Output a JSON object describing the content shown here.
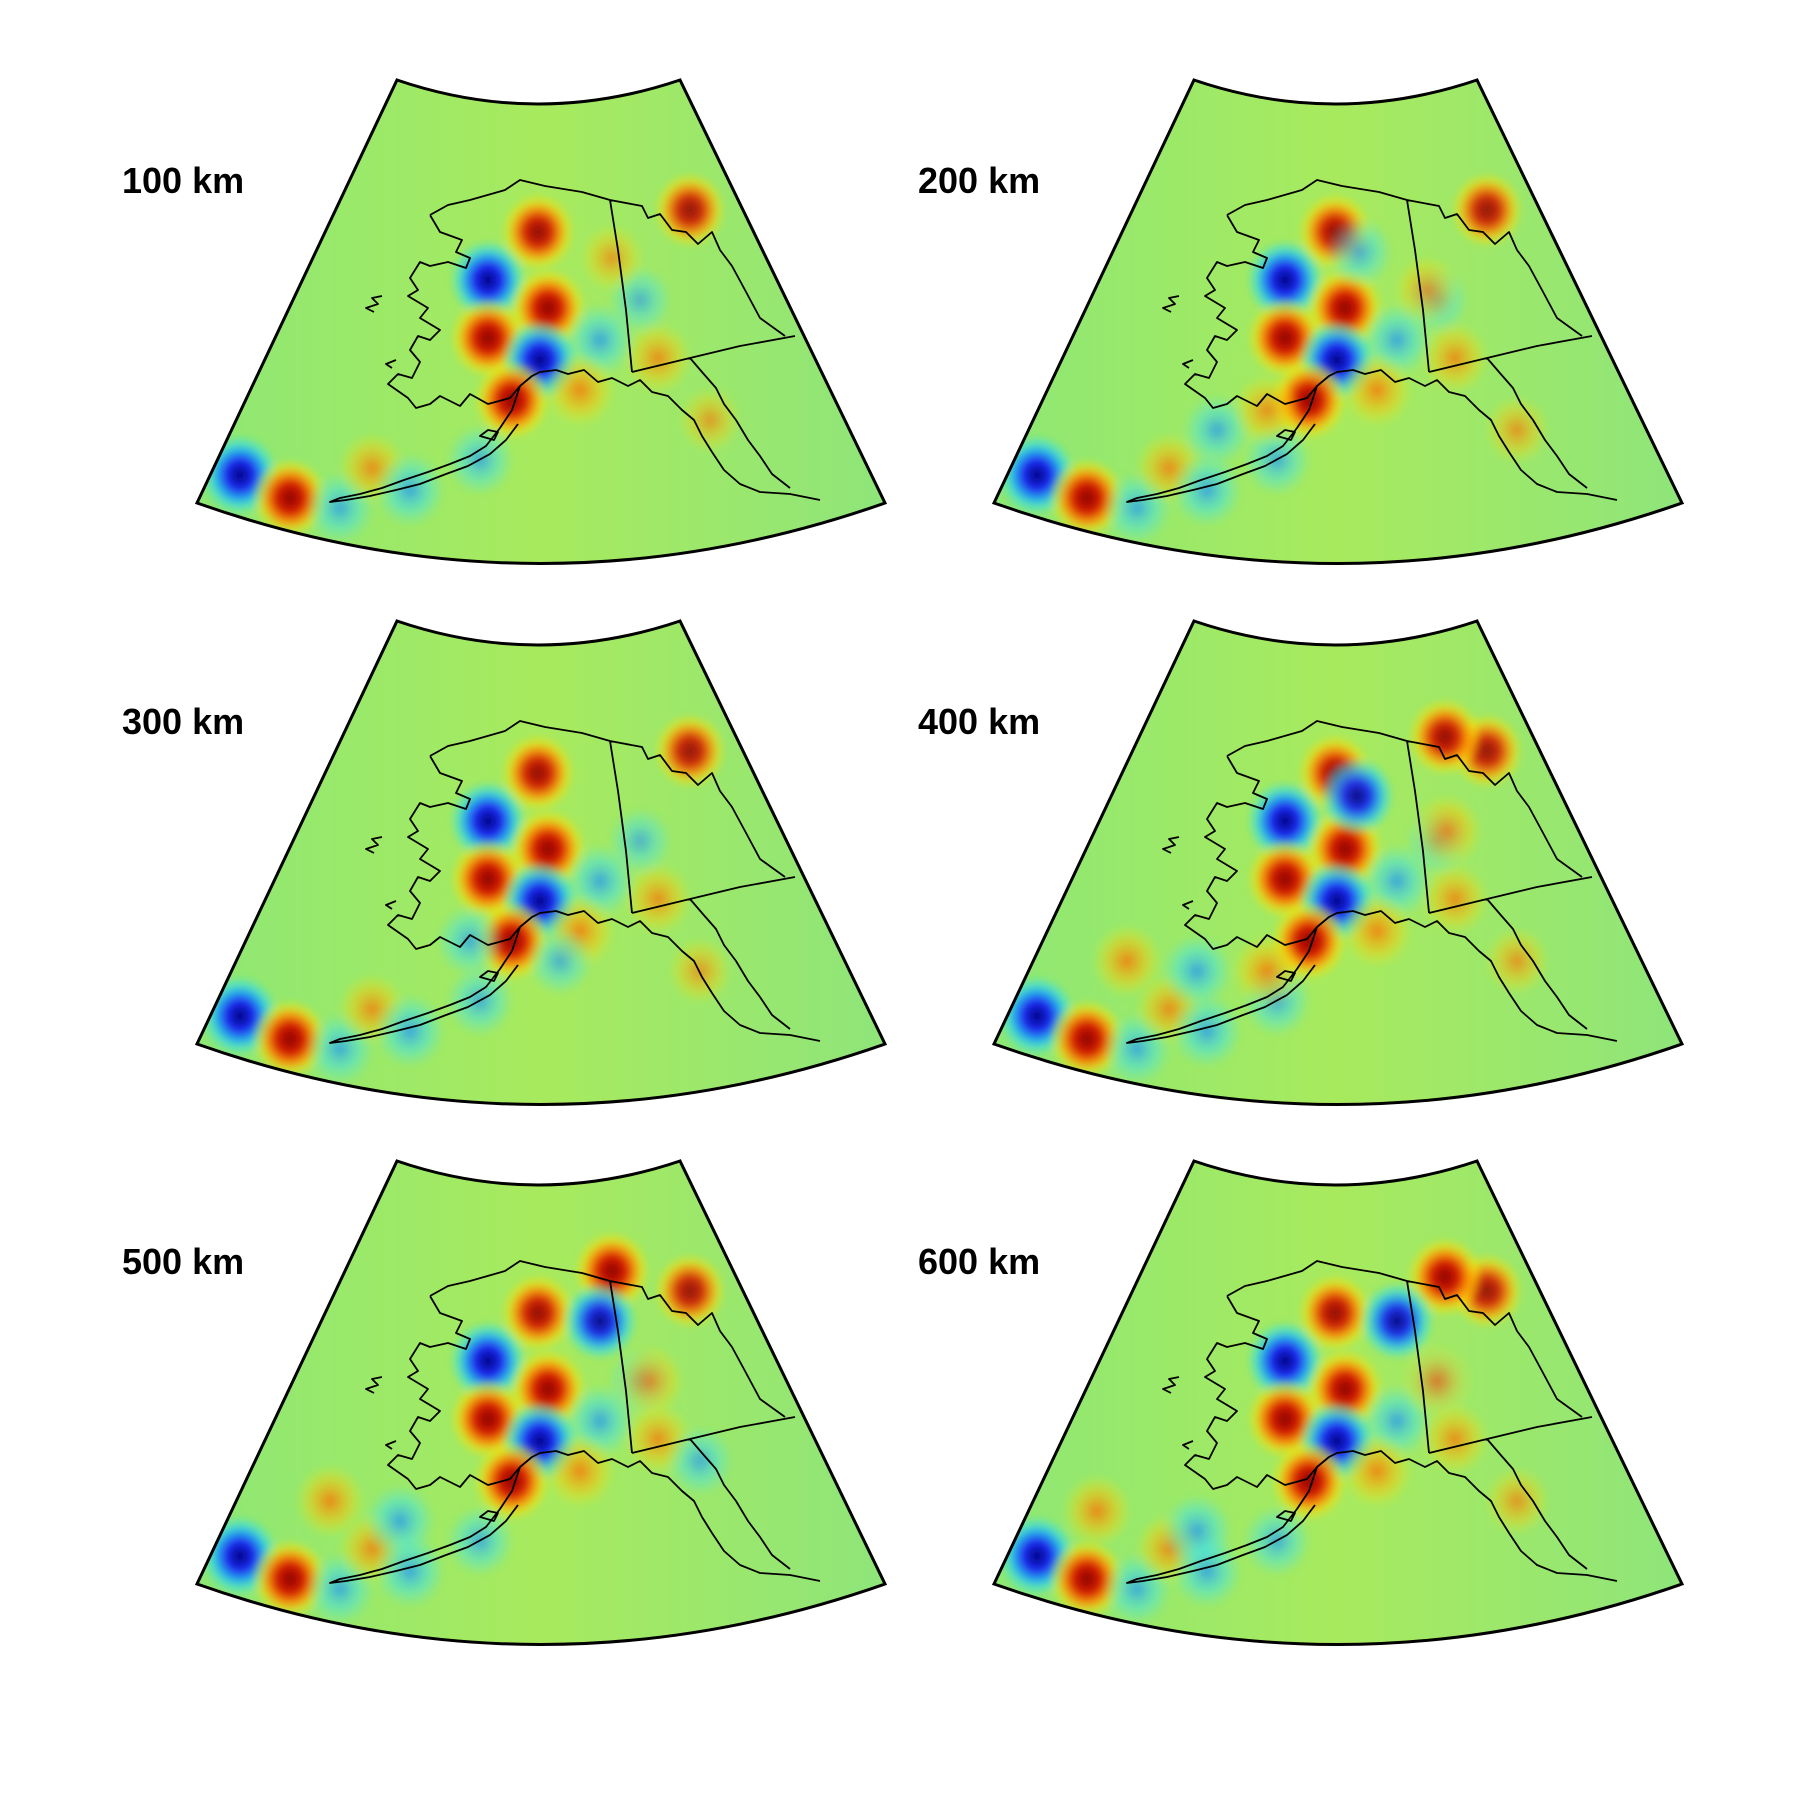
{
  "figure": {
    "panels": [
      {
        "id": "p100",
        "label": "100 km"
      },
      {
        "id": "p200",
        "label": "200 km"
      },
      {
        "id": "p300",
        "label": "300 km"
      },
      {
        "id": "p400",
        "label": "400 km"
      },
      {
        "id": "p500",
        "label": "500 km"
      },
      {
        "id": "p600",
        "label": "600 km"
      }
    ],
    "colormap": "jet",
    "map_region": "Alaska",
    "colors": {
      "background_field": "#9ee870",
      "positive_anomaly": "#a00000",
      "negative_anomaly": "#00007a",
      "coastline": "#000000"
    }
  }
}
